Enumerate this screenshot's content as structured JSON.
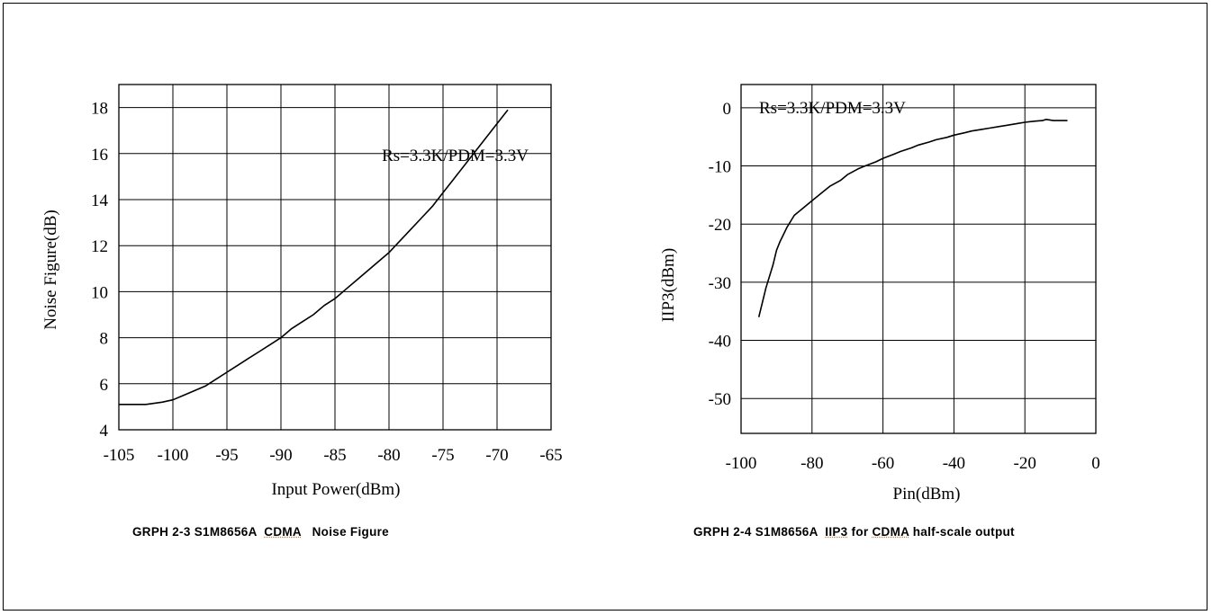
{
  "chart_data": [
    {
      "type": "line",
      "title": "",
      "xlabel": "Input Power(dBm)",
      "ylabel": "Noise Figure(dB)",
      "xlim": [
        -105,
        -65
      ],
      "ylim": [
        4,
        19
      ],
      "xticks": [
        -105,
        -100,
        -95,
        -90,
        -85,
        -80,
        -75,
        -70,
        -65
      ],
      "yticks": [
        4,
        6,
        8,
        10,
        12,
        14,
        16,
        18
      ],
      "xtick_labels": [
        "-105",
        "-100",
        "-95",
        "-90",
        "-85",
        "-80",
        "-75",
        "-70",
        "-65"
      ],
      "ytick_labels": [
        "4",
        "6",
        "8",
        "10",
        "12",
        "14",
        "16",
        "18"
      ],
      "grid": true,
      "annotation": "Rs=3.3K/PDM=3.3V",
      "series": [
        {
          "x": [
            -105,
            -102.5,
            -101,
            -100,
            -99,
            -98,
            -97,
            -96,
            -95,
            -94,
            -93,
            -92,
            -91,
            -90,
            -89,
            -88,
            -87,
            -86,
            -85,
            -84,
            -83,
            -82,
            -81,
            -80,
            -79,
            -78,
            -77,
            -76,
            -75,
            -74,
            -73,
            -72,
            -71,
            -70,
            -69
          ],
          "y": [
            5.1,
            5.1,
            5.2,
            5.3,
            5.5,
            5.7,
            5.9,
            6.2,
            6.5,
            6.8,
            7.1,
            7.4,
            7.7,
            8.0,
            8.4,
            8.7,
            9.0,
            9.4,
            9.7,
            10.1,
            10.5,
            10.9,
            11.3,
            11.7,
            12.2,
            12.7,
            13.2,
            13.7,
            14.3,
            14.9,
            15.5,
            16.1,
            16.7,
            17.3,
            17.9
          ]
        }
      ]
    },
    {
      "type": "line",
      "title": "",
      "xlabel": "Pin(dBm)",
      "ylabel": "IIP3(dBm)",
      "xlim": [
        -100,
        0
      ],
      "ylim": [
        -56,
        4
      ],
      "xticks": [
        -100,
        -80,
        -60,
        -40,
        -20,
        0
      ],
      "yticks": [
        -50,
        -40,
        -30,
        -20,
        -10,
        0
      ],
      "xtick_labels": [
        "-100",
        "-80",
        "-60",
        "-40",
        "-20",
        "0"
      ],
      "ytick_labels": [
        "-50",
        "-40",
        "-30",
        "-20",
        "-10",
        "0"
      ],
      "grid": true,
      "annotation": "Rs=3.3K/PDM=3.3V",
      "series": [
        {
          "x": [
            -95,
            -93,
            -91,
            -90,
            -89,
            -87,
            -85,
            -82,
            -80,
            -77,
            -75,
            -72,
            -70,
            -67,
            -65,
            -62,
            -60,
            -57,
            -55,
            -52,
            -50,
            -47,
            -45,
            -42,
            -40,
            -37,
            -35,
            -32,
            -30,
            -27,
            -25,
            -22,
            -20,
            -17,
            -15,
            -14,
            -12,
            -10,
            -8
          ],
          "y": [
            -36,
            -31,
            -27,
            -24.5,
            -23,
            -20.5,
            -18.5,
            -17,
            -16,
            -14.5,
            -13.5,
            -12.5,
            -11.5,
            -10.5,
            -10,
            -9.3,
            -8.7,
            -8,
            -7.5,
            -6.9,
            -6.4,
            -5.9,
            -5.5,
            -5.1,
            -4.7,
            -4.3,
            -4,
            -3.7,
            -3.5,
            -3.2,
            -3,
            -2.7,
            -2.5,
            -2.3,
            -2.2,
            -2,
            -2.2,
            -2.2,
            -2.2
          ]
        }
      ]
    }
  ],
  "captions": [
    {
      "prefix": "GRPH 2-3 S1M8656A  ",
      "underlined": "CDMA",
      "suffix": "   Noise Figure"
    },
    {
      "prefix": "GRPH 2-4 S1M8656A  ",
      "underlined": "IIP3",
      "mid": " for ",
      "underlined2": "CDMA",
      "suffix": " half-scale output"
    }
  ]
}
